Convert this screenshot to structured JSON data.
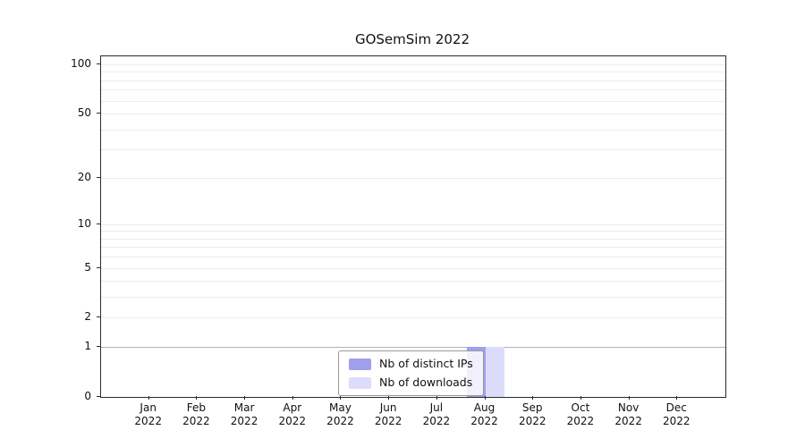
{
  "chart_data": {
    "type": "bar",
    "title": "GOSemSim 2022",
    "categories": [
      "Jan",
      "Feb",
      "Mar",
      "Apr",
      "May",
      "Jun",
      "Jul",
      "Aug",
      "Sep",
      "Oct",
      "Nov",
      "Dec"
    ],
    "year": "2022",
    "series": [
      {
        "name": "Nb of distinct IPs",
        "color": "#9f9fee",
        "values": [
          0,
          0,
          0,
          0,
          0,
          0,
          0,
          1,
          0,
          0,
          0,
          0
        ]
      },
      {
        "name": "Nb of downloads",
        "color": "#dcdcfa",
        "values": [
          0,
          0,
          0,
          0,
          0,
          0,
          0,
          1,
          0,
          0,
          0,
          0
        ]
      }
    ],
    "yscale": "log1p",
    "ylim": [
      0,
      112
    ],
    "yticks": [
      0,
      1,
      2,
      5,
      10,
      20,
      50,
      100
    ],
    "minor_gridlines": [
      2,
      3,
      4,
      5,
      6,
      7,
      8,
      9,
      10,
      20,
      30,
      40,
      50,
      60,
      70,
      80,
      90,
      100
    ],
    "emphasized_gridline": 1,
    "grid": true,
    "legend_position": "lower center inside"
  }
}
